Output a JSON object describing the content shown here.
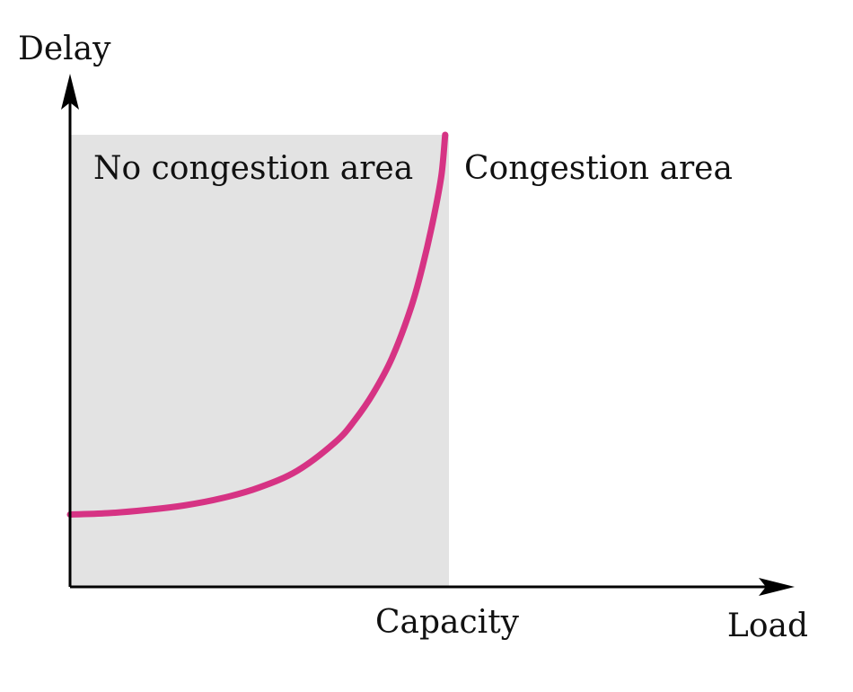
{
  "chart_data": {
    "type": "line",
    "title": "",
    "xlabel": "Load",
    "ylabel": "Delay",
    "capacity_label": "Capacity",
    "region_labels": {
      "no_congestion": "No congestion area",
      "congestion": "Congestion area"
    },
    "capacity": 1.0,
    "xlim": [
      0,
      1.85
    ],
    "ylim": [
      0,
      1.0
    ],
    "grid": false,
    "x_ticks": false,
    "y_ticks": false,
    "series": [
      {
        "x": [
          0.0,
          0.1,
          0.2,
          0.3,
          0.4,
          0.5,
          0.6,
          0.7,
          0.75,
          0.8,
          0.85,
          0.9,
          0.93,
          0.96,
          0.98,
          0.99
        ],
        "y": [
          0.16,
          0.163,
          0.17,
          0.18,
          0.196,
          0.22,
          0.257,
          0.32,
          0.367,
          0.428,
          0.507,
          0.618,
          0.708,
          0.818,
          0.91,
          1.0
        ]
      }
    ]
  },
  "colors": {
    "curve": "#d63384",
    "shade": "#e3e3e3",
    "axis": "#000000",
    "text": "#111111"
  }
}
